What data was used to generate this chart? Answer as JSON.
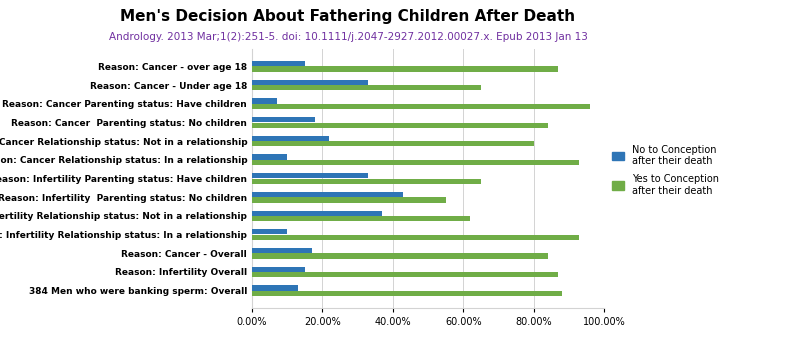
{
  "title": "Men's Decision About Fathering Children After Death",
  "subtitle": "Andrology. 2013 Mar;1(2):251-5. doi: 10.1111/j.2047-2927.2012.00027.x. Epub 2013 Jan 13",
  "categories": [
    "Reason: Cancer - over age 18",
    "Reason: Cancer - Under age 18",
    "Reason: Cancer Parenting status: Have children",
    "Reason: Cancer  Parenting status: No children",
    "Reason: Cancer Relationship status: Not in a relationship",
    "Reason: Cancer Relationship status: In a relationship",
    "Reason: Infertility Parenting status: Have children",
    "Reason: Infertility  Parenting status: No children",
    "Reason: Infertility Relationship status: Not in a relationship",
    "Reason: Infertility Relationship status: In a relationship",
    "Reason: Cancer - Overall",
    "Reason: Infertility Overall",
    "384 Men who were banking sperm: Overall"
  ],
  "no_values": [
    15,
    33,
    7,
    18,
    22,
    10,
    33,
    43,
    37,
    10,
    17,
    15,
    13
  ],
  "yes_values": [
    87,
    65,
    96,
    84,
    80,
    93,
    65,
    55,
    62,
    93,
    84,
    87,
    88
  ],
  "no_color": "#2E75B6",
  "yes_color": "#70AD47",
  "background_color": "#FFFFFF",
  "xlim": [
    0,
    100
  ],
  "xtick_labels": [
    "0.00%",
    "20.00%",
    "40.00%",
    "60.00%",
    "80.00%",
    "100.00%"
  ],
  "xtick_values": [
    0,
    20,
    40,
    60,
    80,
    100
  ],
  "legend_no": "No to Conception\nafter their death",
  "legend_yes": "Yes to Conception\nafter their death",
  "title_fontsize": 11,
  "subtitle_fontsize": 7.5,
  "label_fontsize": 6.5,
  "tick_fontsize": 7
}
